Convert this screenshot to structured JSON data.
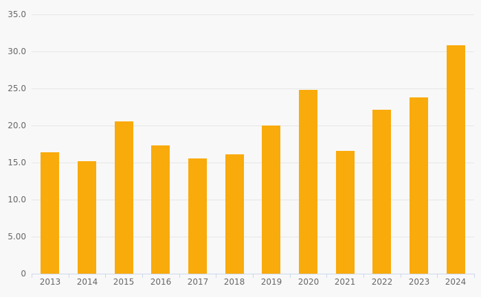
{
  "chart_data": {
    "type": "bar",
    "title": "",
    "xlabel": "",
    "ylabel": "",
    "categories": [
      "2013",
      "2014",
      "2015",
      "2016",
      "2017",
      "2018",
      "2019",
      "2020",
      "2021",
      "2022",
      "2023",
      "2024"
    ],
    "series": [
      {
        "name": "",
        "values": [
          16.4,
          15.2,
          20.5,
          17.3,
          15.5,
          16.1,
          20.0,
          24.8,
          16.6,
          22.1,
          23.8,
          30.8
        ]
      }
    ],
    "ylim": [
      0,
      35
    ],
    "y_tick_interval": 5,
    "y_ticks": [
      {
        "value": 0,
        "label": "0"
      },
      {
        "value": 5,
        "label": "5.00"
      },
      {
        "value": 10,
        "label": "10.0"
      },
      {
        "value": 15,
        "label": "15.0"
      },
      {
        "value": 20,
        "label": "20.0"
      },
      {
        "value": 25,
        "label": "25.0"
      },
      {
        "value": 30,
        "label": "30.0"
      },
      {
        "value": 35,
        "label": "35.0"
      }
    ],
    "grid": true,
    "legend": "none",
    "colors": {
      "bar": "#F9AB0B",
      "background": "#F8F8F8",
      "gridline": "#E6E6E6",
      "axis": "#CCD6EB",
      "label": "#666666"
    }
  }
}
